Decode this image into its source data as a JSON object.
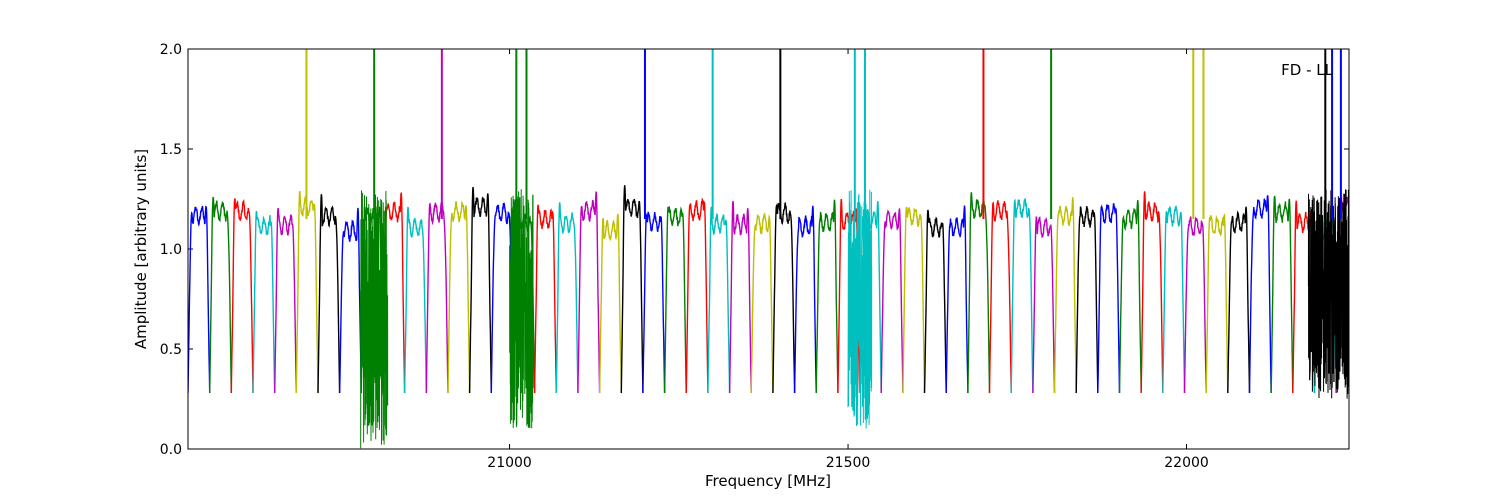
{
  "chart_data": {
    "type": "line",
    "xlabel": "Frequency [MHz]",
    "ylabel": "Amplitude [arbitrary units]",
    "annotation": "FD - LL",
    "xlim": [
      20525,
      22240
    ],
    "ylim": [
      0.0,
      2.0
    ],
    "xticks": [
      21000,
      21500,
      22000
    ],
    "xtick_labels": [
      "21000",
      "21500",
      "22000"
    ],
    "yticks": [
      0.0,
      0.5,
      1.0,
      1.5,
      2.0
    ],
    "ytick_labels": [
      "0.0",
      "0.5",
      "1.0",
      "1.5",
      "2.0"
    ],
    "grid": false,
    "colors": [
      "#0000ff",
      "#008000",
      "#ff0000",
      "#00bfbf",
      "#bf00bf",
      "#bfbf00",
      "#000000"
    ],
    "channel_width_mhz": 32,
    "channel_start_mhz": 20525,
    "channel_count": 54,
    "baseline_level": 1.15,
    "trough_level": 0.28,
    "spikes": [
      {
        "x": 20700,
        "series": "yellow"
      },
      {
        "x": 20800,
        "series": "green"
      },
      {
        "x": 20900,
        "series": "magenta"
      },
      {
        "x": 21010,
        "series": "green"
      },
      {
        "x": 21025,
        "series": "green"
      },
      {
        "x": 21200,
        "series": "blue"
      },
      {
        "x": 21300,
        "series": "cyan"
      },
      {
        "x": 21400,
        "series": "black"
      },
      {
        "x": 21510,
        "series": "cyan"
      },
      {
        "x": 21525,
        "series": "cyan"
      },
      {
        "x": 21700,
        "series": "red"
      },
      {
        "x": 21800,
        "series": "green"
      },
      {
        "x": 22010,
        "series": "yellow"
      },
      {
        "x": 22025,
        "series": "yellow"
      },
      {
        "x": 22205,
        "series": "black"
      },
      {
        "x": 22215,
        "series": "blue"
      },
      {
        "x": 22228,
        "series": "blue"
      }
    ],
    "noisy_regions": [
      {
        "x_start": 20780,
        "x_end": 20820,
        "series": "green",
        "ymin": 0.0
      },
      {
        "x_start": 21000,
        "x_end": 21035,
        "series": "green",
        "ymin": 0.1
      },
      {
        "x_start": 21500,
        "x_end": 21535,
        "series": "cyan",
        "ymin": 0.1
      },
      {
        "x_start": 22180,
        "x_end": 22240,
        "series": "black",
        "ymin": 0.25
      }
    ]
  }
}
